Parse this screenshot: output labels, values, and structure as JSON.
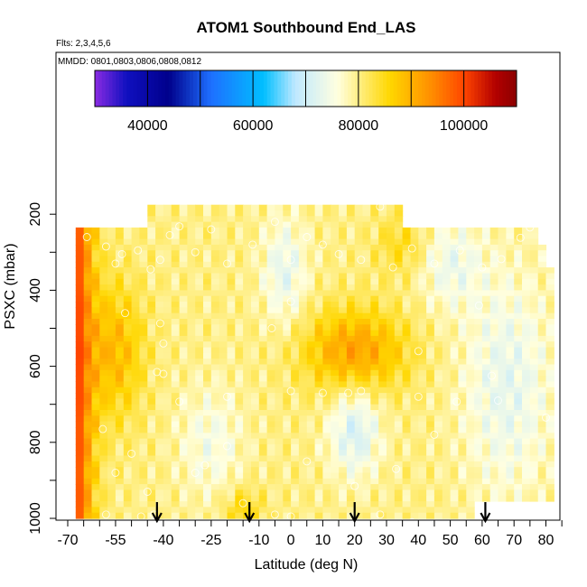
{
  "chart_data": {
    "type": "heatmap",
    "title": "ATOM1 Southbound End_LAS",
    "annotations": [
      "Flts: 2,3,4,5,6",
      "MMDD: 0801,0803,0806,0808,0812"
    ],
    "xlabel": "Latitude (deg N)",
    "ylabel": "PSXC (mbar)",
    "xlim": [
      -70,
      85
    ],
    "ylim": [
      1000,
      100
    ],
    "x_ticks": [
      -70,
      -55,
      -40,
      -25,
      -10,
      0,
      10,
      20,
      30,
      40,
      50,
      60,
      70,
      80
    ],
    "y_ticks": [
      200,
      400,
      600,
      800,
      1000
    ],
    "colorbar": {
      "range": [
        30000,
        110000
      ],
      "ticks": [
        40000,
        60000,
        80000,
        100000
      ],
      "colors": [
        "#8a2be2",
        "#00008b",
        "#1e6fff",
        "#00bfff",
        "#ffffe0",
        "#ffd700",
        "#ff8c00",
        "#ff4500",
        "#b30000",
        "#8b0000"
      ]
    },
    "arrow_latitudes": [
      -42,
      -13,
      20,
      61
    ],
    "grid": false
  }
}
